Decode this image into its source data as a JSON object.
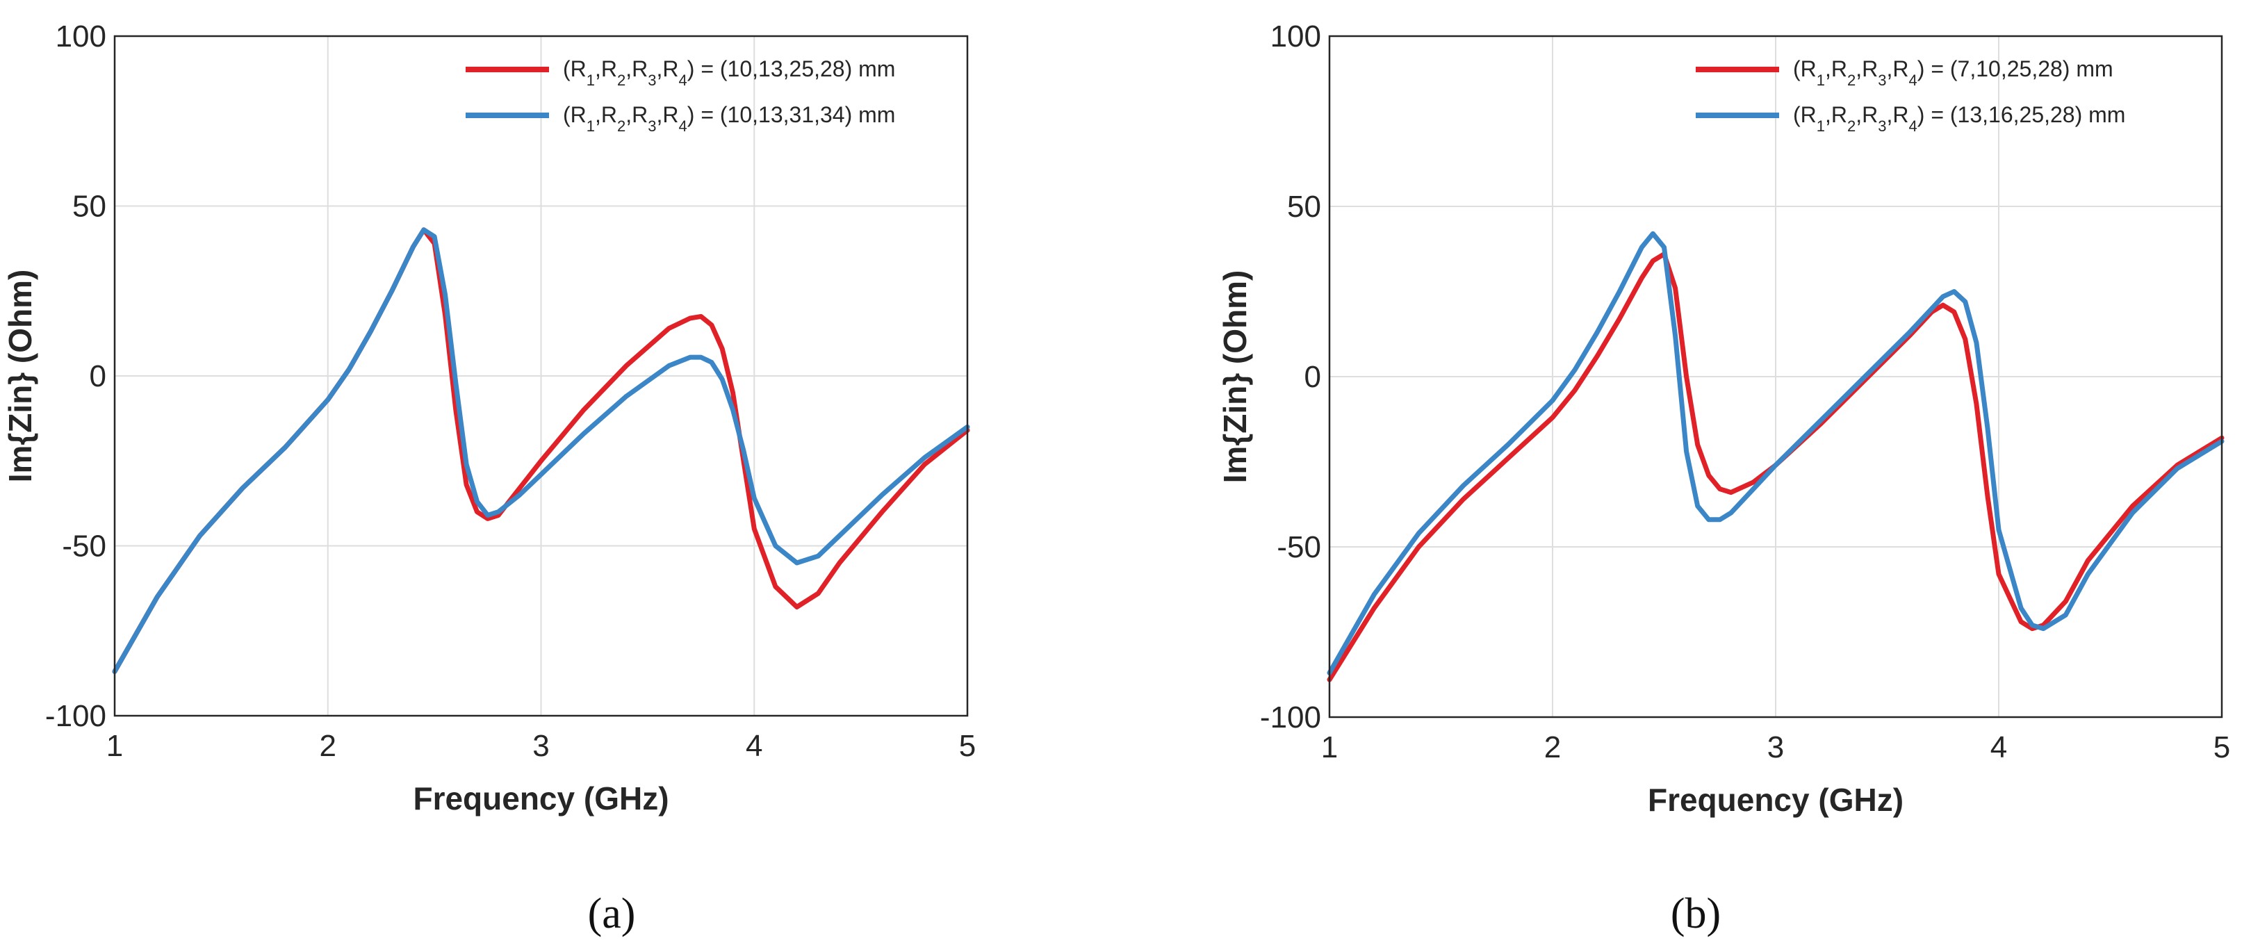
{
  "chart_data": [
    {
      "type": "line",
      "caption": "(a)",
      "xlabel": "Frequency (GHz)",
      "ylabel": "Im{Zin} (Ohm)",
      "xlim": [
        1,
        5
      ],
      "ylim": [
        -100,
        100
      ],
      "xticks": [
        1,
        2,
        3,
        4,
        5
      ],
      "yticks": [
        -100,
        -50,
        0,
        50,
        100
      ],
      "xtick_labels": [
        "1",
        "2",
        "3",
        "4",
        "5"
      ],
      "ytick_labels": [
        "-100",
        "-50",
        "0",
        "50",
        "100"
      ],
      "grid": true,
      "legend_position": "top-right",
      "series": [
        {
          "name": "(R1,R2,R3,R4) = (10,13,25,28) mm",
          "legend": {
            "prefix": "(R",
            "subs": [
              "1",
              "2",
              "3",
              "4"
            ],
            "values": ") = (10,13,25,28) mm"
          },
          "color": "#e02228",
          "x": [
            1.0,
            1.2,
            1.4,
            1.6,
            1.8,
            2.0,
            2.1,
            2.2,
            2.3,
            2.4,
            2.45,
            2.5,
            2.55,
            2.6,
            2.65,
            2.7,
            2.75,
            2.8,
            2.9,
            3.0,
            3.2,
            3.4,
            3.6,
            3.7,
            3.75,
            3.8,
            3.85,
            3.9,
            3.95,
            4.0,
            4.1,
            4.2,
            4.3,
            4.4,
            4.6,
            4.8,
            5.0
          ],
          "y": [
            -87,
            -65,
            -47,
            -33,
            -21,
            -7,
            2,
            13,
            25,
            38,
            43,
            39,
            18,
            -10,
            -32,
            -40,
            -42,
            -41,
            -33,
            -25,
            -10,
            3,
            14,
            17,
            17.5,
            15,
            8,
            -5,
            -25,
            -45,
            -62,
            -68,
            -64,
            -55,
            -40,
            -26,
            -16
          ]
        },
        {
          "name": "(R1,R2,R3,R4) = (10,13,31,34) mm",
          "legend": {
            "prefix": "(R",
            "subs": [
              "1",
              "2",
              "3",
              "4"
            ],
            "values": ") = (10,13,31,34) mm"
          },
          "color": "#3b86c7",
          "x": [
            1.0,
            1.2,
            1.4,
            1.6,
            1.8,
            2.0,
            2.1,
            2.2,
            2.3,
            2.4,
            2.45,
            2.5,
            2.55,
            2.6,
            2.65,
            2.7,
            2.75,
            2.8,
            2.9,
            3.0,
            3.2,
            3.4,
            3.6,
            3.7,
            3.75,
            3.8,
            3.85,
            3.9,
            3.95,
            4.0,
            4.1,
            4.2,
            4.3,
            4.4,
            4.6,
            4.8,
            5.0
          ],
          "y": [
            -87,
            -65,
            -47,
            -33,
            -21,
            -7,
            2,
            13,
            25,
            38,
            43,
            41,
            24,
            -2,
            -26,
            -37,
            -41,
            -40,
            -35,
            -29,
            -17,
            -6,
            3,
            5.5,
            5.5,
            4,
            -1,
            -10,
            -22,
            -36,
            -50,
            -55,
            -53,
            -47,
            -35,
            -24,
            -15
          ]
        }
      ]
    },
    {
      "type": "line",
      "caption": "(b)",
      "xlabel": "Frequency (GHz)",
      "ylabel": "Im{Zin} (Ohm)",
      "xlim": [
        1,
        5
      ],
      "ylim": [
        -100,
        100
      ],
      "xticks": [
        1,
        2,
        3,
        4,
        5
      ],
      "yticks": [
        -100,
        -50,
        0,
        50,
        100
      ],
      "xtick_labels": [
        "1",
        "2",
        "3",
        "4",
        "5"
      ],
      "ytick_labels": [
        "-100",
        "-50",
        "0",
        "50",
        "100"
      ],
      "grid": true,
      "legend_position": "top-right",
      "series": [
        {
          "name": "(R1,R2,R3,R4) = (7,10,25,28) mm",
          "legend": {
            "prefix": "(R",
            "subs": [
              "1",
              "2",
              "3",
              "4"
            ],
            "values": ") = (7,10,25,28) mm"
          },
          "color": "#e02228",
          "x": [
            1.0,
            1.2,
            1.4,
            1.6,
            1.8,
            2.0,
            2.1,
            2.2,
            2.3,
            2.4,
            2.45,
            2.5,
            2.55,
            2.6,
            2.65,
            2.7,
            2.75,
            2.8,
            2.9,
            3.0,
            3.2,
            3.4,
            3.6,
            3.7,
            3.75,
            3.8,
            3.85,
            3.9,
            3.95,
            4.0,
            4.1,
            4.15,
            4.2,
            4.3,
            4.4,
            4.6,
            4.8,
            5.0
          ],
          "y": [
            -89,
            -68,
            -50,
            -36,
            -24,
            -12,
            -4,
            6,
            17,
            29,
            34,
            36,
            26,
            0,
            -20,
            -29,
            -33,
            -34,
            -31,
            -26,
            -14,
            -1,
            12,
            19,
            21,
            19,
            11,
            -8,
            -35,
            -58,
            -72,
            -74,
            -73,
            -66,
            -54,
            -38,
            -26,
            -18
          ]
        },
        {
          "name": "(R1,R2,R3,R4) = (13,16,25,28) mm",
          "legend": {
            "prefix": "(R",
            "subs": [
              "1",
              "2",
              "3",
              "4"
            ],
            "values": ") = (13,16,25,28) mm"
          },
          "color": "#3b86c7",
          "x": [
            1.0,
            1.2,
            1.4,
            1.6,
            1.8,
            2.0,
            2.1,
            2.2,
            2.3,
            2.4,
            2.45,
            2.5,
            2.55,
            2.6,
            2.65,
            2.7,
            2.75,
            2.8,
            2.9,
            3.0,
            3.2,
            3.4,
            3.6,
            3.7,
            3.75,
            3.8,
            3.85,
            3.9,
            3.95,
            4.0,
            4.1,
            4.15,
            4.2,
            4.3,
            4.4,
            4.6,
            4.8,
            5.0
          ],
          "y": [
            -87,
            -64,
            -46,
            -32,
            -20,
            -7,
            2,
            13,
            25,
            38,
            42,
            38,
            12,
            -22,
            -38,
            -42,
            -42,
            -40,
            -33,
            -26,
            -13,
            0,
            13,
            20,
            23.5,
            25,
            22,
            10,
            -15,
            -45,
            -68,
            -73,
            -74,
            -70,
            -58,
            -40,
            -27,
            -19
          ]
        }
      ]
    }
  ]
}
